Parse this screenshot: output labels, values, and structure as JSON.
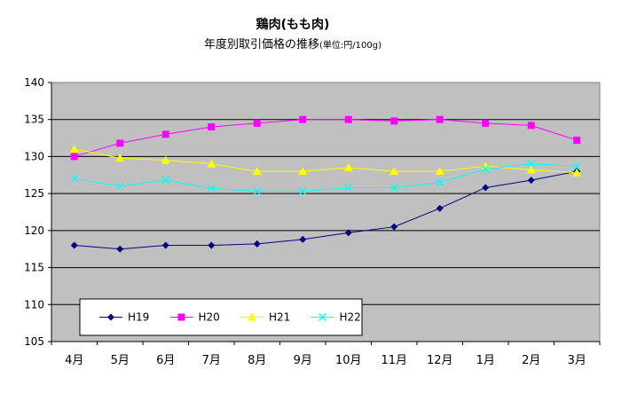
{
  "chart_data": {
    "type": "line",
    "title": "鶏肉(もも肉)",
    "subtitle": "年度別取引価格の推移",
    "unit_note": "(単位:円/100g)",
    "xlabel": "",
    "ylabel": "",
    "categories": [
      "4月",
      "5月",
      "6月",
      "7月",
      "8月",
      "9月",
      "10月",
      "11月",
      "12月",
      "1月",
      "2月",
      "3月"
    ],
    "ylim": [
      105,
      140
    ],
    "yticks": [
      105,
      110,
      115,
      120,
      125,
      130,
      135,
      140
    ],
    "grid": true,
    "legend_position": "bottom-left",
    "series": [
      {
        "name": "H19",
        "color": "#000080",
        "marker": "diamond",
        "values": [
          118.0,
          117.5,
          118.0,
          118.0,
          118.2,
          118.8,
          119.7,
          120.5,
          123.0,
          125.8,
          126.8,
          128.0
        ]
      },
      {
        "name": "H20",
        "color": "#FF00FF",
        "marker": "square",
        "values": [
          130.0,
          131.8,
          133.0,
          134.0,
          134.5,
          135.0,
          135.0,
          134.8,
          135.0,
          134.5,
          134.2,
          132.2
        ]
      },
      {
        "name": "H21",
        "color": "#FFFF00",
        "marker": "triangle",
        "values": [
          131.0,
          129.8,
          129.5,
          129.0,
          128.0,
          128.0,
          128.5,
          128.0,
          128.0,
          128.7,
          128.2,
          127.8
        ]
      },
      {
        "name": "H22",
        "color": "#00FFFF",
        "marker": "x",
        "values": [
          127.0,
          126.0,
          126.8,
          125.7,
          125.3,
          125.3,
          125.8,
          125.8,
          126.5,
          128.3,
          129.0,
          128.7
        ]
      }
    ]
  }
}
